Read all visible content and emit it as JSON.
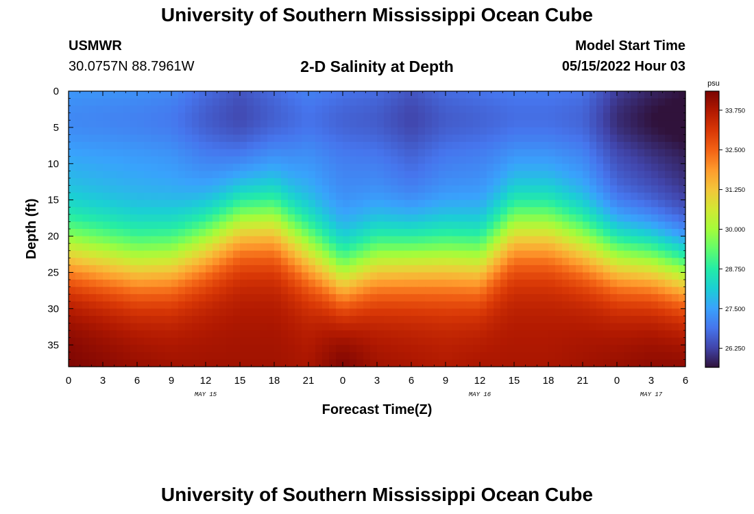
{
  "header": {
    "title": "University of Southern Mississippi Ocean Cube",
    "station": "USMWR",
    "coordinates": "30.0757N  88.7961W",
    "plot_title": "2-D Salinity at Depth",
    "model_start_label": "Model Start Time",
    "model_start_value": "05/15/2022 Hour 03"
  },
  "footer": {
    "title": "University of Southern Mississippi Ocean Cube"
  },
  "chart_data": {
    "type": "heatmap",
    "title": "2-D Salinity at Depth",
    "xlabel": "Forecast Time(Z)",
    "ylabel": "Depth (ft)",
    "units": "psu",
    "x_ticks": [
      "0",
      "3",
      "6",
      "9",
      "12",
      "15",
      "18",
      "21",
      "0",
      "3",
      "6",
      "9",
      "12",
      "15",
      "18",
      "21",
      "0",
      "3",
      "6"
    ],
    "x_tick_hours": [
      0,
      3,
      6,
      9,
      12,
      15,
      18,
      21,
      24,
      27,
      30,
      33,
      36,
      39,
      42,
      45,
      48,
      51,
      54
    ],
    "date_labels": [
      {
        "label": "MAY 15",
        "hour": 12
      },
      {
        "label": "MAY 16",
        "hour": 36
      },
      {
        "label": "MAY 17",
        "hour": 51
      }
    ],
    "xlim": [
      0,
      54
    ],
    "y_ticks": [
      "0",
      "5",
      "10",
      "15",
      "20",
      "25",
      "30",
      "35"
    ],
    "y_tick_values": [
      0,
      5,
      10,
      15,
      20,
      25,
      30,
      35
    ],
    "ylim": [
      0,
      38
    ],
    "y_inverted": true,
    "colorbar": {
      "ticks": [
        "33.750",
        "32.500",
        "31.250",
        "30.000",
        "28.750",
        "27.500",
        "26.250"
      ],
      "tick_values": [
        33.75,
        32.5,
        31.25,
        30.0,
        28.75,
        27.5,
        26.25
      ],
      "range": [
        25.65,
        34.35
      ],
      "colors": [
        "#30123b",
        "#4145ab",
        "#4675ed",
        "#39a2fc",
        "#1bcfd4",
        "#24eca6",
        "#61fc6c",
        "#a4fc3b",
        "#d1e834",
        "#f3c63a",
        "#fe9b2d",
        "#f36315",
        "#d93806",
        "#b11901",
        "#7a0402"
      ]
    },
    "salinity_profile": {
      "hours": [
        0,
        6,
        9,
        12,
        15,
        18,
        21,
        24,
        27,
        30,
        33,
        36,
        39,
        42,
        45,
        48,
        51,
        54
      ],
      "halocline_depth_ft": [
        22.5,
        24,
        23.5,
        21,
        18,
        18,
        22,
        26,
        23.5,
        23,
        23,
        23.5,
        19,
        19,
        21,
        23,
        23.5,
        25
      ],
      "surface_psu": [
        27.5,
        27.4,
        27.3,
        26.9,
        26.6,
        26.9,
        27.2,
        27.0,
        26.9,
        26.6,
        26.9,
        27.0,
        27.1,
        27.1,
        27.0,
        26.3,
        26.0,
        25.8
      ],
      "bottom_psu": [
        34.3,
        34.0,
        33.9,
        33.9,
        33.9,
        33.9,
        33.8,
        34.3,
        33.9,
        33.8,
        33.7,
        33.8,
        33.8,
        33.8,
        33.9,
        34.0,
        34.1,
        34.1
      ]
    }
  }
}
